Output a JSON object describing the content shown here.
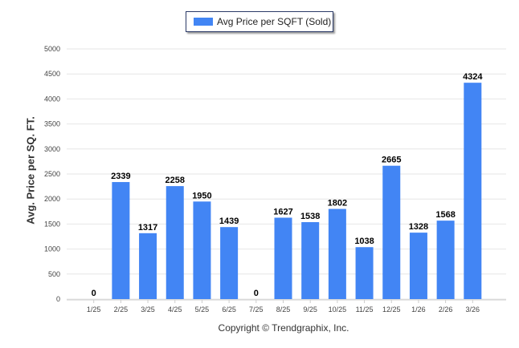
{
  "chart_data": {
    "type": "bar",
    "title": "",
    "legend": [
      "Avg Price per SQFT (Sold)"
    ],
    "legend_position": "top-center",
    "xlabel": "Copyright © Trendgraphix, Inc.",
    "ylabel": "Avg. Price per SQ. FT.",
    "ylim": [
      0,
      5000
    ],
    "yticks": [
      0,
      500,
      1000,
      1500,
      2000,
      2500,
      3000,
      3500,
      4000,
      4500,
      5000
    ],
    "grid": true,
    "categories": [
      "1/25",
      "2/25",
      "3/25",
      "4/25",
      "5/25",
      "6/25",
      "7/25",
      "8/25",
      "9/25",
      "10/25",
      "11/25",
      "12/25",
      "1/26",
      "2/26",
      "3/26"
    ],
    "series": [
      {
        "name": "Avg Price per SQFT (Sold)",
        "values": [
          0,
          2339,
          1317,
          2258,
          1950,
          1439,
          0,
          1627,
          1538,
          1802,
          1038,
          2665,
          1328,
          1568,
          4324
        ]
      }
    ],
    "bar_color": "#4285f4"
  }
}
